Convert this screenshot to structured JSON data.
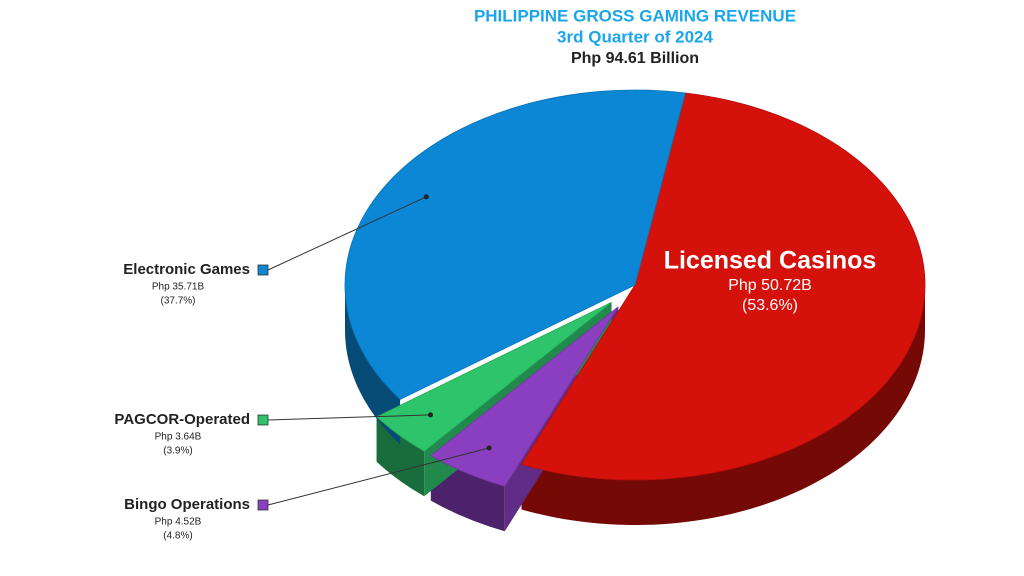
{
  "chart_data": {
    "type": "pie",
    "title": "PHILIPPINE GROSS GAMING REVENUE",
    "subtitle": "3rd Quarter of 2024",
    "total_label": "Php 94.61 Billion",
    "categories": [
      "Licensed Casinos",
      "Bingo Operations",
      "PAGCOR-Operated",
      "Electronic Games"
    ],
    "values": [
      50.72,
      4.52,
      3.64,
      35.71
    ],
    "value_labels": [
      "Php 50.72B",
      "Php 4.52B",
      "Php 3.64B",
      "Php 35.71B"
    ],
    "percents": [
      53.6,
      4.8,
      3.9,
      37.7
    ],
    "percent_labels": [
      "(53.6%)",
      "(4.8%)",
      "(3.9%)",
      "(37.7%)"
    ],
    "colors": [
      "#d5110b",
      "#8a3fc0",
      "#2ec46b",
      "#0b87d6"
    ],
    "exploded": [
      false,
      true,
      true,
      false
    ]
  }
}
